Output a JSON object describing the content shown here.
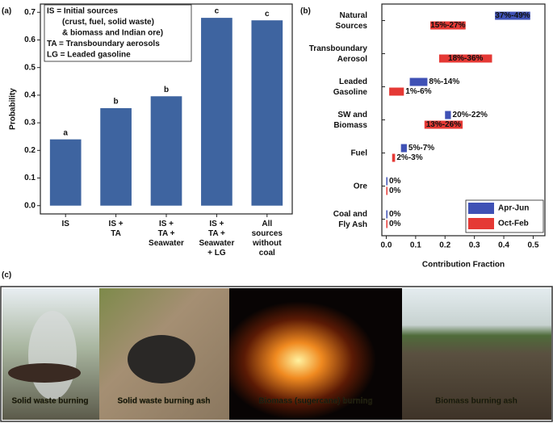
{
  "chart_data": [
    {
      "type": "bar",
      "panel_label": "(a)",
      "ylabel": "Probability",
      "categories": [
        "IS",
        "IS +\nTA",
        "IS +\nTA +\nSeawater",
        "IS +\nTA +\nSeawater\n+ LG",
        "All\nsources\nwithout\ncoal"
      ],
      "values": [
        0.24,
        0.353,
        0.396,
        0.68,
        0.671
      ],
      "significance_letters": [
        "a",
        "b",
        "b",
        "c",
        "c"
      ],
      "color": "#3e64a0",
      "ylim": [
        -0.03,
        0.73
      ],
      "yticks": [
        {
          "value": 0,
          "label": "0.0"
        },
        0.1,
        0.2,
        0.3,
        0.4,
        0.5,
        0.6,
        0.7
      ],
      "annotation": [
        "IS = Initial sources",
        "(crust, fuel, solid waste)",
        "& biomass and Indian ore)",
        "TA = Transboundary aerosols",
        "LG = Leaded gasoline"
      ]
    },
    {
      "type": "range_bar",
      "panel_label": "(b)",
      "xlabel": "Contribution Fraction",
      "categories": [
        "Natural\nSources",
        "Transboundary\nAerosol",
        "Leaded\nGasoline",
        "SW and\nBiomass",
        "Fuel",
        "Ore",
        "Coal and\nFly Ash"
      ],
      "series": [
        {
          "name": "Apr-Jun",
          "color": "#3f51b5",
          "low": [
            0.37,
            null,
            0.08,
            0.2,
            0.05,
            0,
            0
          ],
          "high": [
            0.49,
            null,
            0.14,
            0.22,
            0.07,
            0,
            0
          ],
          "value_labels": [
            "37%-49%",
            null,
            "8%-14%",
            "20%-22%",
            "5%-7%",
            "0%",
            "0%"
          ]
        },
        {
          "name": "Oct-Feb",
          "color": "#e53935",
          "low": [
            0.15,
            0.18,
            0.01,
            0.13,
            0.02,
            0,
            0
          ],
          "high": [
            0.27,
            0.36,
            0.06,
            0.26,
            0.03,
            0,
            0
          ],
          "value_labels": [
            "15%-27%",
            "18%-36%",
            "1%-6%",
            "13%-26%",
            "2%-3%",
            "0%",
            "0%"
          ]
        }
      ],
      "xlim": [
        -0.015,
        0.54
      ],
      "xticks": [
        {
          "value": 0,
          "label": "0.0"
        },
        0.1,
        0.2,
        0.3,
        0.4,
        0.5
      ],
      "legend": "lower right"
    }
  ],
  "panel_c": {
    "label": "(c)",
    "captions": [
      "Solid waste burning",
      "Solid waste burning ash",
      "Biomass (sugercane) burning",
      "Biomass burning ash"
    ]
  }
}
